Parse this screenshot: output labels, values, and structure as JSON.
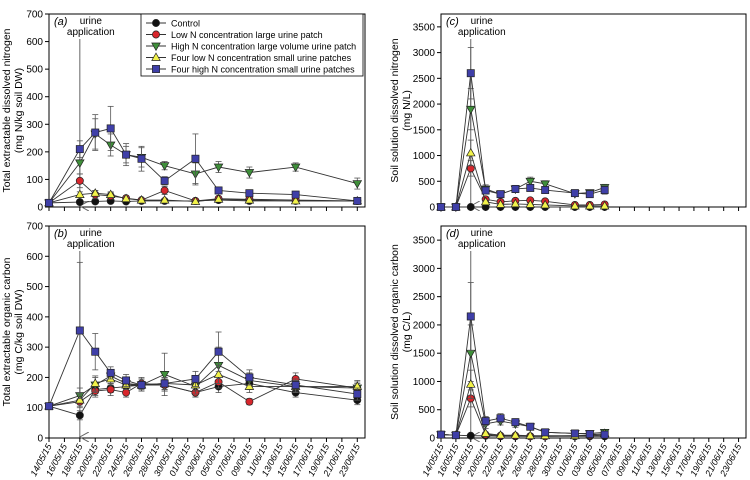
{
  "colors": {
    "Control": "#111111",
    "Low N concentration large urine patch": "#d8262c",
    "High N concentration large volume urine patch": "#3f8f3a",
    "Four low N concentration small urine patches": "#f2f24a",
    "Four high N concentration small urine patches": "#3f3fa8"
  },
  "markers": {
    "Control": "circle",
    "Low N concentration large urine patch": "circle",
    "High N concentration large volume urine patch": "triangle-down",
    "Four low N concentration small urine patches": "triangle-up",
    "Four high N concentration small urine patches": "square"
  },
  "dates": [
    "14/05/15",
    "16/05/15",
    "18/05/15",
    "20/05/15",
    "22/05/15",
    "24/05/15",
    "26/05/15",
    "28/05/15",
    "30/05/15",
    "01/06/15",
    "03/06/15",
    "05/06/15",
    "07/06/15",
    "09/06/15",
    "11/06/15",
    "13/06/15",
    "15/06/15",
    "17/06/15",
    "19/06/15",
    "21/06/15",
    "23/06/15"
  ],
  "chart_data": [
    {
      "id": "a",
      "type": "line",
      "panel_label": "(a)",
      "annotation": "urine application",
      "annotation_x": "18/05/15",
      "ylabel": [
        "Total extractable dissolved nitrogen",
        "(mg N/kg soil DW)"
      ],
      "ylim": [
        0,
        700
      ],
      "yticks": [
        0,
        100,
        200,
        300,
        400,
        500,
        600,
        700
      ],
      "show_x_labels": false,
      "legend": "top-right",
      "series": [
        {
          "name": "Control",
          "x": [
            "14/05/15",
            "18/05/15",
            "20/05/15",
            "22/05/15",
            "24/05/15",
            "26/05/15",
            "29/05/15",
            "02/06/15",
            "05/06/15",
            "09/06/15",
            "15/06/15",
            "23/06/15"
          ],
          "y": [
            15,
            18,
            20,
            22,
            20,
            22,
            22,
            22,
            25,
            22,
            22,
            22
          ],
          "err": [
            3,
            3,
            3,
            3,
            3,
            3,
            3,
            3,
            3,
            3,
            3,
            3
          ]
        },
        {
          "name": "Low N concentration large urine patch",
          "x": [
            "14/05/15",
            "18/05/15",
            "20/05/15",
            "22/05/15",
            "24/05/15",
            "26/05/15",
            "29/05/15",
            "02/06/15",
            "05/06/15",
            "09/06/15",
            "15/06/15",
            "23/06/15"
          ],
          "y": [
            15,
            95,
            45,
            40,
            32,
            25,
            60,
            22,
            30,
            28,
            25,
            22
          ],
          "err": [
            3,
            25,
            15,
            12,
            8,
            8,
            15,
            5,
            5,
            5,
            5,
            3
          ]
        },
        {
          "name": "High N concentration large volume urine patch",
          "x": [
            "14/05/15",
            "18/05/15",
            "20/05/15",
            "22/05/15",
            "24/05/15",
            "26/05/15",
            "29/05/15",
            "02/06/15",
            "05/06/15",
            "09/06/15",
            "15/06/15",
            "23/06/15"
          ],
          "y": [
            15,
            160,
            265,
            225,
            190,
            180,
            150,
            120,
            145,
            125,
            145,
            85
          ],
          "err": [
            3,
            40,
            55,
            40,
            40,
            35,
            15,
            40,
            20,
            20,
            15,
            20
          ]
        },
        {
          "name": "Four low N concentration small urine patches",
          "x": [
            "14/05/15",
            "18/05/15",
            "20/05/15",
            "22/05/15",
            "24/05/15",
            "26/05/15",
            "29/05/15",
            "02/06/15",
            "05/06/15",
            "09/06/15",
            "15/06/15",
            "23/06/15"
          ],
          "y": [
            15,
            45,
            50,
            45,
            30,
            25,
            25,
            20,
            28,
            25,
            22,
            22
          ],
          "err": [
            3,
            10,
            10,
            10,
            8,
            8,
            5,
            5,
            5,
            5,
            5,
            3
          ]
        },
        {
          "name": "Four high N concentration small urine patches",
          "x": [
            "14/05/15",
            "18/05/15",
            "20/05/15",
            "22/05/15",
            "24/05/15",
            "26/05/15",
            "29/05/15",
            "02/06/15",
            "05/06/15",
            "09/06/15",
            "15/06/15",
            "23/06/15"
          ],
          "y": [
            15,
            210,
            270,
            285,
            190,
            175,
            95,
            175,
            60,
            50,
            45,
            22
          ],
          "err": [
            3,
            30,
            65,
            80,
            30,
            45,
            15,
            90,
            10,
            10,
            10,
            5
          ]
        }
      ]
    },
    {
      "id": "b",
      "type": "line",
      "panel_label": "(b)",
      "annotation": "urine application",
      "annotation_x": "18/05/15",
      "ylabel": [
        "Total extractable organic carbon",
        "(mg C/kg soil DW)"
      ],
      "ylim": [
        0,
        700
      ],
      "yticks": [
        0,
        100,
        200,
        300,
        400,
        500,
        600,
        700
      ],
      "show_x_labels": true,
      "series": [
        {
          "name": "Control",
          "x": [
            "14/05/15",
            "18/05/15",
            "20/05/15",
            "22/05/15",
            "24/05/15",
            "26/05/15",
            "29/05/15",
            "02/06/15",
            "05/06/15",
            "09/06/15",
            "15/06/15",
            "23/06/15"
          ],
          "y": [
            105,
            75,
            160,
            165,
            170,
            175,
            175,
            150,
            170,
            180,
            150,
            125
          ],
          "err": [
            10,
            15,
            20,
            15,
            15,
            20,
            20,
            15,
            20,
            20,
            15,
            15
          ]
        },
        {
          "name": "Low N concentration large urine patch",
          "x": [
            "14/05/15",
            "18/05/15",
            "20/05/15",
            "22/05/15",
            "24/05/15",
            "26/05/15",
            "29/05/15",
            "02/06/15",
            "05/06/15",
            "09/06/15",
            "15/06/15",
            "23/06/15"
          ],
          "y": [
            105,
            120,
            155,
            160,
            150,
            180,
            175,
            150,
            185,
            120,
            195,
            165
          ],
          "err": [
            10,
            20,
            20,
            20,
            15,
            20,
            20,
            15,
            20,
            10,
            20,
            15
          ]
        },
        {
          "name": "High N concentration large volume urine patch",
          "x": [
            "14/05/15",
            "18/05/15",
            "20/05/15",
            "22/05/15",
            "24/05/15",
            "26/05/15",
            "29/05/15",
            "02/06/15",
            "05/06/15",
            "09/06/15",
            "15/06/15",
            "23/06/15"
          ],
          "y": [
            105,
            140,
            175,
            205,
            180,
            175,
            210,
            170,
            240,
            190,
            170,
            165
          ],
          "err": [
            10,
            25,
            25,
            20,
            15,
            20,
            70,
            25,
            60,
            25,
            20,
            20
          ]
        },
        {
          "name": "Four low N concentration small urine patches",
          "x": [
            "14/05/15",
            "18/05/15",
            "20/05/15",
            "22/05/15",
            "24/05/15",
            "26/05/15",
            "29/05/15",
            "02/06/15",
            "05/06/15",
            "09/06/15",
            "15/06/15",
            "23/06/15"
          ],
          "y": [
            105,
            125,
            180,
            195,
            175,
            175,
            180,
            175,
            210,
            170,
            170,
            170
          ],
          "err": [
            10,
            20,
            25,
            20,
            15,
            20,
            20,
            20,
            30,
            20,
            20,
            20
          ]
        },
        {
          "name": "Four high N concentration small urine patches",
          "x": [
            "14/05/15",
            "18/05/15",
            "20/05/15",
            "22/05/15",
            "24/05/15",
            "26/05/15",
            "29/05/15",
            "02/06/15",
            "05/06/15",
            "09/06/15",
            "15/06/15",
            "23/06/15"
          ],
          "y": [
            105,
            355,
            285,
            215,
            190,
            175,
            180,
            195,
            285,
            200,
            175,
            145
          ],
          "err": [
            10,
            225,
            60,
            20,
            20,
            20,
            20,
            25,
            65,
            25,
            20,
            20
          ]
        }
      ]
    },
    {
      "id": "c",
      "type": "line",
      "panel_label": "(c)",
      "annotation": "urine application",
      "annotation_x": "18/05/15",
      "ylabel": [
        "Soil solution dissolved nitrogen",
        "(mg N/L)"
      ],
      "ylim": [
        0,
        3750
      ],
      "yticks": [
        0,
        500,
        1000,
        1500,
        2000,
        2500,
        3000,
        3500
      ],
      "show_x_labels": false,
      "series": [
        {
          "name": "Control",
          "x": [
            "14/05/15",
            "16/05/15",
            "18/05/15",
            "20/05/15",
            "22/05/15",
            "24/05/15",
            "26/05/15",
            "28/05/15",
            "01/06/15",
            "03/06/15",
            "05/06/15"
          ],
          "y": [
            0,
            0,
            0,
            0,
            0,
            0,
            0,
            0,
            0,
            0,
            0
          ],
          "err": [
            0,
            0,
            0,
            0,
            0,
            0,
            0,
            0,
            0,
            0,
            0
          ]
        },
        {
          "name": "Low N concentration large urine patch",
          "x": [
            "14/05/15",
            "16/05/15",
            "18/05/15",
            "20/05/15",
            "22/05/15",
            "24/05/15",
            "26/05/15",
            "28/05/15",
            "01/06/15",
            "03/06/15",
            "05/06/15"
          ],
          "y": [
            0,
            0,
            750,
            150,
            100,
            120,
            130,
            110,
            40,
            40,
            50
          ],
          "err": [
            0,
            0,
            150,
            40,
            30,
            30,
            30,
            30,
            10,
            10,
            10
          ]
        },
        {
          "name": "High N concentration large volume urine patch",
          "x": [
            "14/05/15",
            "16/05/15",
            "18/05/15",
            "20/05/15",
            "22/05/15",
            "24/05/15",
            "26/05/15",
            "28/05/15",
            "01/06/15",
            "03/06/15",
            "05/06/15"
          ],
          "y": [
            0,
            0,
            1900,
            350,
            250,
            350,
            500,
            450,
            260,
            280,
            380
          ],
          "err": [
            0,
            0,
            400,
            80,
            50,
            60,
            80,
            60,
            50,
            50,
            60
          ]
        },
        {
          "name": "Four low N concentration small urine patches",
          "x": [
            "14/05/15",
            "16/05/15",
            "18/05/15",
            "20/05/15",
            "22/05/15",
            "24/05/15",
            "26/05/15",
            "28/05/15",
            "01/06/15",
            "03/06/15",
            "05/06/15"
          ],
          "y": [
            0,
            0,
            1050,
            100,
            50,
            60,
            50,
            40,
            20,
            20,
            20
          ],
          "err": [
            0,
            0,
            250,
            30,
            10,
            10,
            10,
            10,
            5,
            5,
            5
          ]
        },
        {
          "name": "Four high N concentration small urine patches",
          "x": [
            "14/05/15",
            "16/05/15",
            "18/05/15",
            "20/05/15",
            "22/05/15",
            "24/05/15",
            "26/05/15",
            "28/05/15",
            "01/06/15",
            "03/06/15",
            "05/06/15"
          ],
          "y": [
            0,
            0,
            2600,
            320,
            250,
            350,
            370,
            330,
            270,
            250,
            330
          ],
          "err": [
            0,
            0,
            500,
            60,
            40,
            70,
            60,
            50,
            50,
            40,
            80
          ]
        }
      ]
    },
    {
      "id": "d",
      "type": "line",
      "panel_label": "(d)",
      "annotation": "urine application",
      "annotation_x": "18/05/15",
      "ylabel": [
        "Soil solution dissolved organic carbon",
        "(mg C/L)"
      ],
      "ylim": [
        0,
        3750
      ],
      "yticks": [
        0,
        500,
        1000,
        1500,
        2000,
        2500,
        3000,
        3500
      ],
      "show_x_labels": true,
      "series": [
        {
          "name": "Control",
          "x": [
            "14/05/15",
            "16/05/15",
            "18/05/15",
            "20/05/15",
            "22/05/15",
            "24/05/15",
            "26/05/15",
            "28/05/15",
            "01/06/15",
            "03/06/15",
            "05/06/15"
          ],
          "y": [
            60,
            50,
            40,
            40,
            30,
            30,
            30,
            30,
            30,
            30,
            30
          ],
          "err": [
            10,
            10,
            10,
            10,
            5,
            5,
            5,
            5,
            5,
            5,
            5
          ]
        },
        {
          "name": "Low N concentration large urine patch",
          "x": [
            "14/05/15",
            "16/05/15",
            "18/05/15",
            "20/05/15",
            "22/05/15",
            "24/05/15",
            "26/05/15",
            "28/05/15",
            "01/06/15",
            "03/06/15",
            "05/06/15"
          ],
          "y": [
            60,
            50,
            700,
            60,
            40,
            40,
            30,
            30,
            40,
            40,
            50
          ],
          "err": [
            10,
            10,
            150,
            20,
            10,
            10,
            10,
            10,
            10,
            10,
            10
          ]
        },
        {
          "name": "High N concentration large volume urine patch",
          "x": [
            "14/05/15",
            "16/05/15",
            "18/05/15",
            "20/05/15",
            "22/05/15",
            "24/05/15",
            "26/05/15",
            "28/05/15",
            "01/06/15",
            "03/06/15",
            "05/06/15"
          ],
          "y": [
            60,
            50,
            1500,
            250,
            300,
            250,
            200,
            100,
            80,
            80,
            100
          ],
          "err": [
            10,
            10,
            500,
            80,
            70,
            60,
            50,
            30,
            20,
            20,
            20
          ]
        },
        {
          "name": "Four low N concentration small urine patches",
          "x": [
            "14/05/15",
            "16/05/15",
            "18/05/15",
            "20/05/15",
            "22/05/15",
            "24/05/15",
            "26/05/15",
            "28/05/15",
            "01/06/15",
            "03/06/15",
            "05/06/15"
          ],
          "y": [
            60,
            50,
            950,
            80,
            50,
            50,
            40,
            40,
            40,
            50,
            80
          ],
          "err": [
            10,
            10,
            250,
            20,
            10,
            10,
            10,
            10,
            10,
            10,
            10
          ]
        },
        {
          "name": "Four high N concentration small urine patches",
          "x": [
            "14/05/15",
            "16/05/15",
            "18/05/15",
            "20/05/15",
            "22/05/15",
            "24/05/15",
            "26/05/15",
            "28/05/15",
            "01/06/15",
            "03/06/15",
            "05/06/15"
          ],
          "y": [
            60,
            50,
            2150,
            300,
            350,
            280,
            200,
            100,
            80,
            70,
            60
          ],
          "err": [
            10,
            10,
            600,
            80,
            80,
            60,
            50,
            30,
            20,
            20,
            20
          ]
        }
      ]
    }
  ]
}
